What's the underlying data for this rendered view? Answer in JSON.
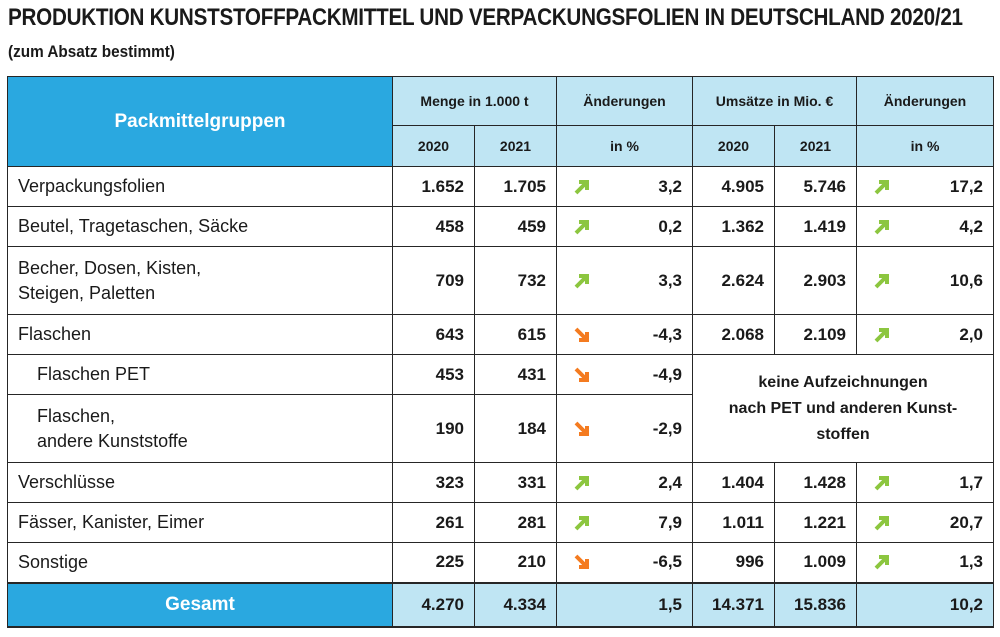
{
  "title": "PRODUKTION KUNSTSTOFFPACKMITTEL UND VERPACKUNGSFOLIEN IN DEUTSCHLAND 2020/21",
  "subtitle": "(zum Absatz bestimmt)",
  "colors": {
    "header_blue": "#2aa8e0",
    "header_light": "#bfe5f3",
    "arrow_up": "#8cc63f",
    "arrow_down": "#f47b20"
  },
  "header": {
    "group": "Packmittelgruppen",
    "menge": "Menge in 1.000 t",
    "aenderungen1": "Änderungen",
    "umsaetze": "Umsätze in Mio. €",
    "aenderungen2": "Änderungen",
    "y2020a": "2020",
    "y2021a": "2021",
    "inprozent1": "in %",
    "y2020b": "2020",
    "y2021b": "2021",
    "inprozent2": "in %"
  },
  "chart_data": {
    "type": "table",
    "title": "PRODUKTION KUNSTSTOFFPACKMITTEL UND VERPACKUNGSFOLIEN IN DEUTSCHLAND 2020/21",
    "subtitle": "(zum Absatz bestimmt)",
    "columns": [
      "Packmittelgruppen",
      "Menge in 1.000 t 2020",
      "Menge in 1.000 t 2021",
      "Änderungen in %",
      "Umsätze in Mio. € 2020",
      "Umsätze in Mio. € 2021",
      "Änderungen in %"
    ],
    "rows": [
      {
        "label": [
          "Verpackungsfolien"
        ],
        "m2020": "1.652",
        "m2021": "1.705",
        "m_dir": "up",
        "m_chg": "3,2",
        "u2020": "4.905",
        "u2021": "5.746",
        "u_dir": "up",
        "u_chg": "17,2"
      },
      {
        "label": [
          "Beutel, Tragetaschen, Säcke"
        ],
        "m2020": "458",
        "m2021": "459",
        "m_dir": "up",
        "m_chg": "0,2",
        "u2020": "1.362",
        "u2021": "1.419",
        "u_dir": "up",
        "u_chg": "4,2"
      },
      {
        "label": [
          "Becher, Dosen, Kisten,",
          "Steigen, Paletten"
        ],
        "m2020": "709",
        "m2021": "732",
        "m_dir": "up",
        "m_chg": "3,3",
        "u2020": "2.624",
        "u2021": "2.903",
        "u_dir": "up",
        "u_chg": "10,6"
      },
      {
        "label": [
          "Flaschen"
        ],
        "m2020": "643",
        "m2021": "615",
        "m_dir": "down",
        "m_chg": "-4,3",
        "u2020": "2.068",
        "u2021": "2.109",
        "u_dir": "up",
        "u_chg": "2,0"
      },
      {
        "label": [
          "Flaschen PET"
        ],
        "m2020": "453",
        "m2021": "431",
        "m_dir": "down",
        "m_chg": "-4,9"
      },
      {
        "label": [
          "Flaschen,",
          "andere Kunststoffe"
        ],
        "m2020": "190",
        "m2021": "184",
        "m_dir": "down",
        "m_chg": "-2,9"
      },
      {
        "label": [
          "Verschlüsse"
        ],
        "m2020": "323",
        "m2021": "331",
        "m_dir": "up",
        "m_chg": "2,4",
        "u2020": "1.404",
        "u2021": "1.428",
        "u_dir": "up",
        "u_chg": "1,7"
      },
      {
        "label": [
          "Fässer, Kanister, Eimer"
        ],
        "m2020": "261",
        "m2021": "281",
        "m_dir": "up",
        "m_chg": "7,9",
        "u2020": "1.011",
        "u2021": "1.221",
        "u_dir": "up",
        "u_chg": "20,7"
      },
      {
        "label": [
          "Sonstige"
        ],
        "m2020": "225",
        "m2021": "210",
        "m_dir": "down",
        "m_chg": "-6,5",
        "u2020": "996",
        "u2021": "1.009",
        "u_dir": "up",
        "u_chg": "1,3"
      }
    ],
    "note": [
      "keine Aufzeichnungen",
      "nach PET und anderen Kunst-",
      "stoffen"
    ],
    "total": {
      "label": "Gesamt",
      "m2020": "4.270",
      "m2021": "4.334",
      "m_chg": "1,5",
      "u2020": "14.371",
      "u2021": "15.836",
      "u_chg": "10,2"
    }
  }
}
